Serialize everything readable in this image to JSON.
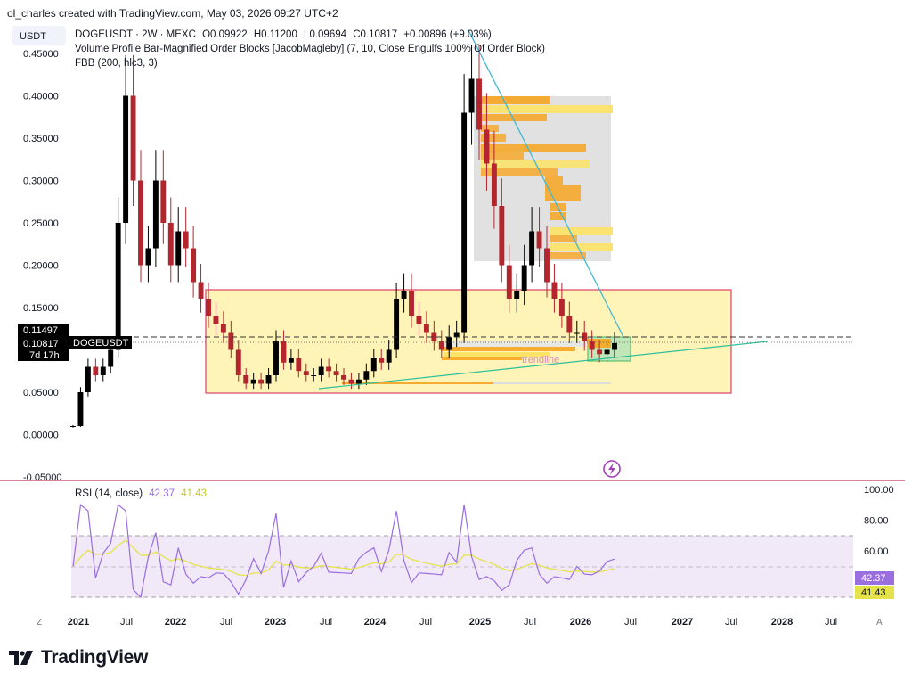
{
  "caption": "ol_charles created with TradingView.com, May 03, 2026 09:27 UTC+2",
  "quote_currency": "USDT",
  "legend": {
    "symbol_line": "DOGEUSDT · 2W · MEXC",
    "open": "O0.09922",
    "high": "H0.11200",
    "low": "L0.09694",
    "close": "C0.10817",
    "change": "+0.00896 (+9.03%)",
    "indicator_1": "Volume Profile Bar-Magnified Order Blocks [JacobMagleby] (7, 10, Close Engulfs 100% Of Order Block)",
    "indicator_2": "FBB (200, hlc3, 3)"
  },
  "price_labels": {
    "dashed_level": "0.11497",
    "last_price": "0.10817",
    "symbol_tag": "DOGEUSDT",
    "countdown": "7d 17h"
  },
  "annotation": {
    "trendline": "trendline"
  },
  "rsi": {
    "title": "RSI (14, close)",
    "value": "42.37",
    "ma_value": "41.43",
    "axis": [
      "100.00",
      "80.00",
      "60.00"
    ]
  },
  "x_axis": [
    "2021",
    "Jul",
    "2022",
    "Jul",
    "2023",
    "Jul",
    "2024",
    "Jul",
    "2025",
    "Jul",
    "2026",
    "Jul",
    "2027",
    "Jul",
    "2028",
    "Jul"
  ],
  "x_axis_bold": [
    "2021",
    "2022",
    "2023",
    "2024",
    "2025",
    "2026",
    "2027",
    "2028"
  ],
  "corner_buttons": {
    "left": "Z",
    "right": "A"
  },
  "brand": "TradingView",
  "colors": {
    "up": "#000000",
    "down": "#b3262d",
    "box_fill": "#fff0a0",
    "box_border": "#d9426a",
    "order_block_orange": "#f7a520",
    "order_block_yellow": "#fbe36a",
    "profile_gray": "#dcdcdc",
    "trendline_cyan": "#3fb8d6",
    "trendline_green": "#2fbf9a",
    "rsi_line": "#9b6ee0",
    "rsi_ma": "#e6e34a",
    "rsi_band": "#efe6f7"
  },
  "chart_data": {
    "type": "candlestick",
    "price_axis": [
      "0.45000",
      "0.40000",
      "0.35000",
      "0.30000",
      "0.25000",
      "0.20000",
      "0.15000",
      "0.10000",
      "0.05000",
      "0.00000",
      "-0.05000"
    ],
    "ylim": [
      -0.05,
      0.47
    ],
    "range_box": {
      "top": 0.172,
      "bottom": 0.049
    },
    "candles_close_approx": [
      0.01,
      0.05,
      0.08,
      0.07,
      0.08,
      0.1,
      0.25,
      0.4,
      0.3,
      0.2,
      0.22,
      0.3,
      0.25,
      0.2,
      0.24,
      0.22,
      0.18,
      0.16,
      0.14,
      0.13,
      0.12,
      0.1,
      0.07,
      0.06,
      0.065,
      0.06,
      0.07,
      0.11,
      0.085,
      0.09,
      0.075,
      0.07,
      0.07,
      0.08,
      0.075,
      0.07,
      0.065,
      0.06,
      0.065,
      0.075,
      0.09,
      0.085,
      0.1,
      0.16,
      0.17,
      0.14,
      0.13,
      0.12,
      0.11,
      0.1,
      0.115,
      0.12,
      0.38,
      0.42,
      0.36,
      0.32,
      0.27,
      0.2,
      0.16,
      0.17,
      0.2,
      0.24,
      0.22,
      0.18,
      0.16,
      0.14,
      0.12,
      0.12,
      0.11,
      0.1,
      0.095,
      0.1,
      0.108
    ]
  }
}
